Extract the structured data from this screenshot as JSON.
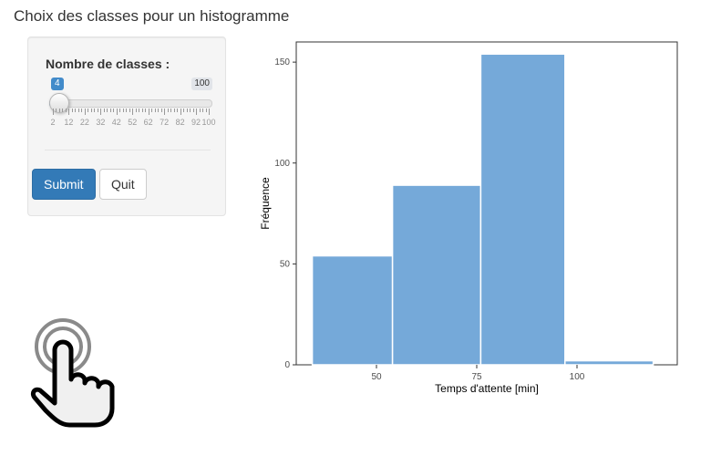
{
  "page": {
    "title": "Choix des classes pour un histogramme"
  },
  "sidebar": {
    "slider": {
      "label": "Nombre de classes :",
      "min": 2,
      "max": 100,
      "value": 4,
      "min_label": "2",
      "max_label": "100",
      "value_label": "4",
      "tick_labels": [
        "2",
        "12",
        "22",
        "32",
        "42",
        "52",
        "62",
        "72",
        "82",
        "92",
        "100"
      ]
    },
    "buttons": {
      "submit_label": "Submit",
      "quit_label": "Quit"
    }
  },
  "colors": {
    "primary": "#337ab7",
    "slider_accent": "#428bca",
    "bar_fill": "#75a9d9",
    "panel_bg": "#f5f5f5"
  },
  "icons": {
    "pointer": "hand-pointer-icon"
  },
  "chart_data": {
    "type": "bar",
    "xlabel": "Temps d'attente  [min]",
    "ylabel": "Fréquence",
    "xlim": [
      30,
      125
    ],
    "ylim": [
      0,
      160
    ],
    "x_ticks": [
      50,
      75,
      100
    ],
    "y_ticks": [
      0,
      50,
      100,
      150
    ],
    "bins": [
      {
        "start": 34,
        "end": 54,
        "count": 54
      },
      {
        "start": 54,
        "end": 76,
        "count": 89
      },
      {
        "start": 76,
        "end": 97,
        "count": 154
      },
      {
        "start": 97,
        "end": 119,
        "count": 2
      }
    ],
    "grid": false
  }
}
